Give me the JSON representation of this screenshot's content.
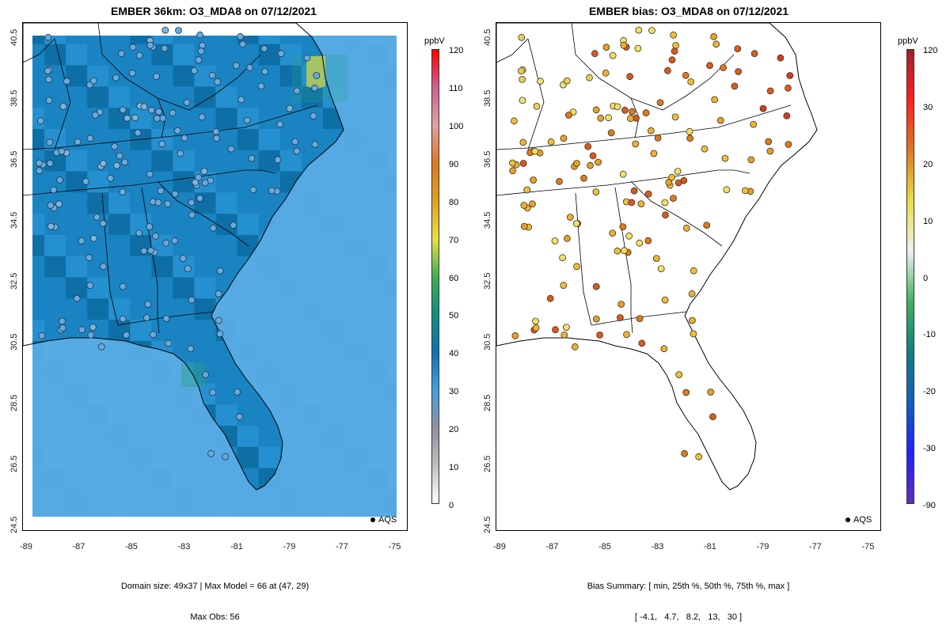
{
  "left_panel": {
    "title": "EMBER 36km: O3_MDA8 on 07/12/2021",
    "footer_line1": "Domain size: 49x37 | Max Model = 66 at (47, 29)",
    "footer_line2": "Max Obs: 56",
    "legend_label": "AQS",
    "colorbar": {
      "units": "ppbV",
      "ticks": [
        "120",
        "110",
        "100",
        "90",
        "80",
        "70",
        "60",
        "50",
        "40",
        "30",
        "20",
        "10",
        "0"
      ]
    }
  },
  "right_panel": {
    "title": "EMBER bias: O3_MDA8 on 07/12/2021",
    "footer_line1": "Bias Summary: [ min, 25th %, 50th %, 75th %, max ]",
    "footer_line2": "[ -4.1,   4.7,   8.2,   13,   30 ]",
    "legend_label": "AQS",
    "colorbar": {
      "units": "ppbV",
      "ticks": [
        "120",
        "30",
        "20",
        "10",
        "0",
        "-10",
        "-20",
        "-30",
        "-90"
      ]
    }
  },
  "axes": {
    "x_ticks": [
      "-89",
      "-87",
      "-85",
      "-83",
      "-81",
      "-79",
      "-77",
      "-75"
    ],
    "y_ticks": [
      "40.5",
      "38.5",
      "36.5",
      "34.5",
      "32.5",
      "30.5",
      "28.5",
      "26.5",
      "24.5"
    ]
  },
  "colors": {
    "ocean_fill": "#5aaee6",
    "land_fill": "#1a84c2",
    "land_fill_dark": "#0e6fa6",
    "hot_spot": "#e6d84a",
    "bias_site": "#e8a020"
  },
  "chart_data": [
    {
      "type": "heatmap",
      "title": "EMBER 36km: O3_MDA8 on 07/12/2021",
      "xlabel": "",
      "ylabel": "",
      "xlim": [
        -89.2,
        -74.8
      ],
      "ylim": [
        24.5,
        40.7
      ],
      "colorbar_range": [
        0,
        120
      ],
      "colorbar_units": "ppbV",
      "domain_size": "49x37",
      "max_model": 66,
      "max_model_at": [
        47,
        29
      ],
      "max_obs": 56,
      "overlay": "AQS observation sites"
    },
    {
      "type": "scatter",
      "title": "EMBER bias: O3_MDA8 on 07/12/2021",
      "xlabel": "",
      "ylabel": "",
      "xlim": [
        -89.2,
        -74.8
      ],
      "ylim": [
        24.5,
        40.7
      ],
      "colorbar_range": [
        -90,
        120
      ],
      "colorbar_units": "ppbV",
      "bias_summary": {
        "min": -4.1,
        "p25": 4.7,
        "p50": 8.2,
        "p75": 13,
        "max": 30
      }
    }
  ]
}
